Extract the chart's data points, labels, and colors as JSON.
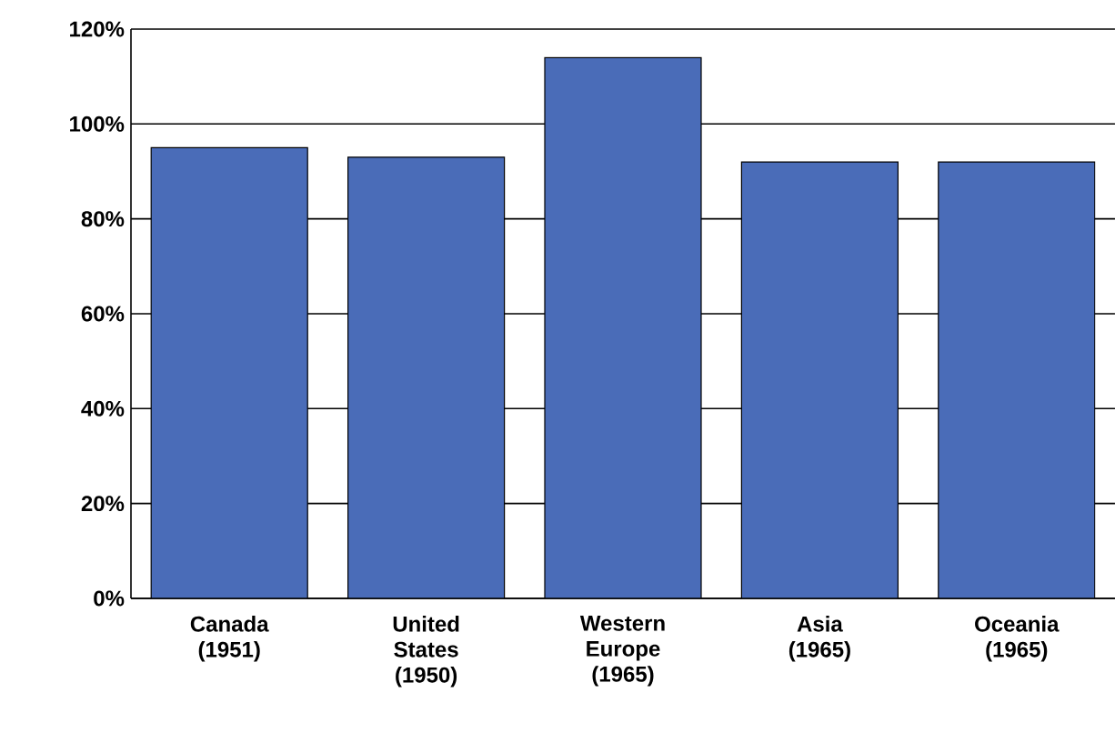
{
  "chart_data": {
    "type": "bar",
    "categories": [
      "Canada (1951)",
      "United States (1950)",
      "Western Europe (1965)",
      "Asia (1965)",
      "Oceania (1965)"
    ],
    "values": [
      95,
      93,
      114,
      92,
      92
    ],
    "color": "#4a6cb8",
    "ylim": [
      0,
      120
    ],
    "yticks": [
      {
        "value": 0,
        "label": "0%"
      },
      {
        "value": 20,
        "label": "20%"
      },
      {
        "value": 40,
        "label": "40%"
      },
      {
        "value": 60,
        "label": "60%"
      },
      {
        "value": 80,
        "label": "80%"
      },
      {
        "value": 100,
        "label": "100%"
      },
      {
        "value": 120,
        "label": "120%"
      }
    ],
    "grid": "y"
  }
}
